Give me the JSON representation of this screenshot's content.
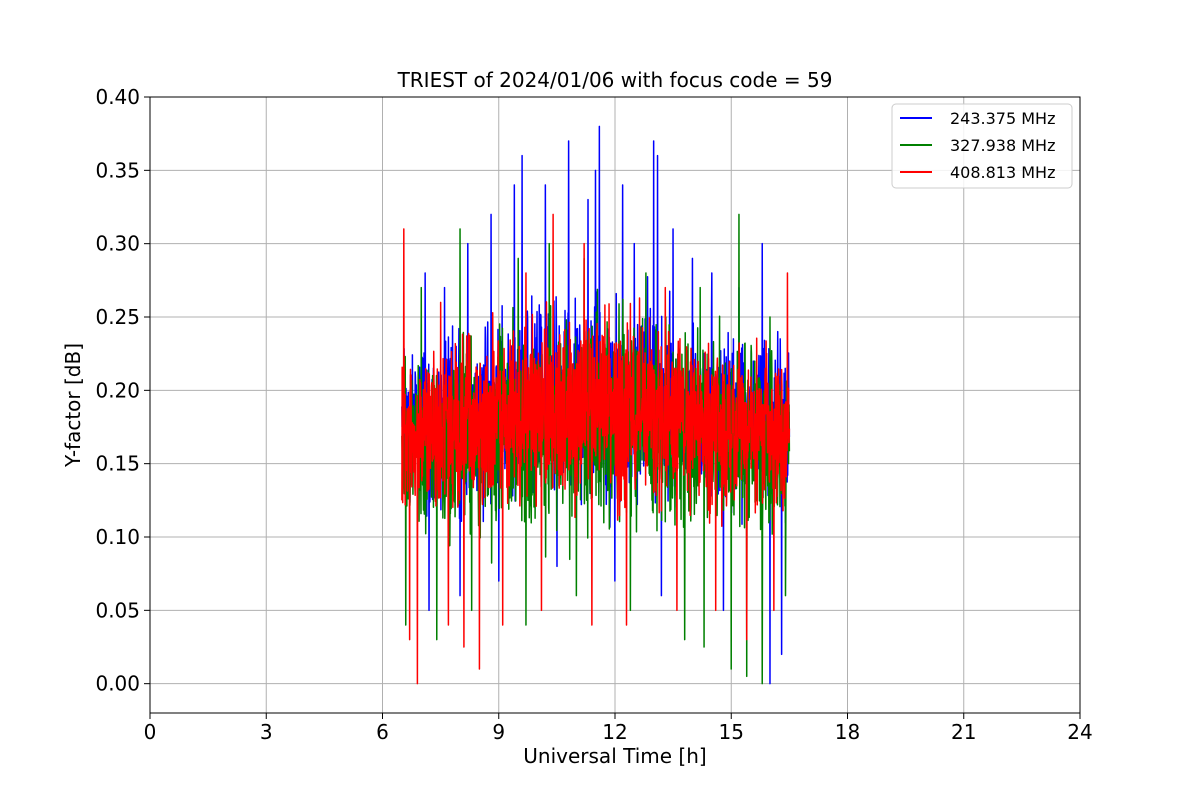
{
  "chart_data": {
    "type": "line",
    "title": "TRIEST of 2024/01/06 with focus code = 59",
    "xlabel": "Universal Time [h]",
    "ylabel": "Y-factor [dB]",
    "xlim": [
      0,
      24
    ],
    "ylim": [
      -0.02,
      0.4
    ],
    "xticks": [
      0,
      3,
      6,
      9,
      12,
      15,
      18,
      21,
      24
    ],
    "xtick_labels": [
      "0",
      "3",
      "6",
      "9",
      "12",
      "15",
      "18",
      "21",
      "24"
    ],
    "yticks": [
      0.0,
      0.05,
      0.1,
      0.15,
      0.2,
      0.25,
      0.3,
      0.35,
      0.4
    ],
    "ytick_labels": [
      "0.00",
      "0.05",
      "0.10",
      "0.15",
      "0.20",
      "0.25",
      "0.30",
      "0.35",
      "0.40"
    ],
    "grid": true,
    "legend_position": "top-right",
    "x_range_of_data": [
      6.5,
      16.5
    ],
    "series": [
      {
        "name": "243.375 MHz",
        "color": "#0000ff",
        "x_start": 6.5,
        "x_end": 16.5,
        "typical_low": 0.1,
        "typical_high": 0.25,
        "peaks": [
          [
            7.1,
            0.28
          ],
          [
            7.6,
            0.27
          ],
          [
            8.2,
            0.3
          ],
          [
            8.8,
            0.32
          ],
          [
            9.4,
            0.34
          ],
          [
            9.6,
            0.36
          ],
          [
            10.2,
            0.34
          ],
          [
            10.8,
            0.37
          ],
          [
            11.3,
            0.33
          ],
          [
            11.5,
            0.35
          ],
          [
            11.6,
            0.38
          ],
          [
            12.2,
            0.34
          ],
          [
            12.5,
            0.3
          ],
          [
            13.0,
            0.37
          ],
          [
            13.1,
            0.36
          ],
          [
            13.5,
            0.31
          ],
          [
            14.0,
            0.29
          ],
          [
            14.5,
            0.28
          ],
          [
            15.2,
            0.27
          ],
          [
            15.8,
            0.3
          ],
          [
            16.2,
            0.24
          ]
        ],
        "dips": [
          [
            7.2,
            0.05
          ],
          [
            8.0,
            0.06
          ],
          [
            9.0,
            0.07
          ],
          [
            10.5,
            0.08
          ],
          [
            12.0,
            0.07
          ],
          [
            13.2,
            0.06
          ],
          [
            14.8,
            0.05
          ],
          [
            16.0,
            0.0
          ],
          [
            16.3,
            0.02
          ]
        ]
      },
      {
        "name": "327.938 MHz",
        "color": "#008000",
        "x_start": 6.5,
        "x_end": 16.5,
        "typical_low": 0.08,
        "typical_high": 0.24,
        "peaks": [
          [
            7.0,
            0.27
          ],
          [
            8.0,
            0.31
          ],
          [
            9.5,
            0.29
          ],
          [
            10.3,
            0.3
          ],
          [
            11.2,
            0.29
          ],
          [
            12.8,
            0.28
          ],
          [
            14.2,
            0.27
          ],
          [
            15.2,
            0.32
          ],
          [
            16.0,
            0.25
          ]
        ],
        "dips": [
          [
            6.6,
            0.04
          ],
          [
            7.4,
            0.03
          ],
          [
            8.3,
            0.05
          ],
          [
            9.7,
            0.04
          ],
          [
            11.0,
            0.06
          ],
          [
            12.4,
            0.05
          ],
          [
            13.8,
            0.03
          ],
          [
            14.3,
            0.025
          ],
          [
            15.0,
            0.01
          ],
          [
            15.4,
            0.005
          ],
          [
            15.8,
            0.0
          ],
          [
            16.4,
            0.06
          ]
        ]
      },
      {
        "name": "408.813 MHz",
        "color": "#ff0000",
        "x_start": 6.5,
        "x_end": 16.5,
        "typical_low": 0.1,
        "typical_high": 0.24,
        "peaks": [
          [
            6.55,
            0.31
          ],
          [
            7.5,
            0.26
          ],
          [
            8.5,
            0.27
          ],
          [
            9.7,
            0.28
          ],
          [
            10.4,
            0.32
          ],
          [
            11.2,
            0.3
          ],
          [
            12.3,
            0.3
          ],
          [
            13.3,
            0.27
          ],
          [
            14.6,
            0.26
          ],
          [
            16.45,
            0.28
          ]
        ],
        "dips": [
          [
            6.7,
            0.03
          ],
          [
            6.9,
            0.0
          ],
          [
            7.7,
            0.04
          ],
          [
            8.1,
            0.025
          ],
          [
            8.5,
            0.01
          ],
          [
            9.1,
            0.04
          ],
          [
            10.1,
            0.05
          ],
          [
            11.4,
            0.04
          ],
          [
            12.3,
            0.04
          ],
          [
            13.6,
            0.05
          ],
          [
            14.6,
            0.05
          ],
          [
            15.4,
            0.03
          ],
          [
            16.1,
            0.05
          ]
        ]
      }
    ]
  }
}
